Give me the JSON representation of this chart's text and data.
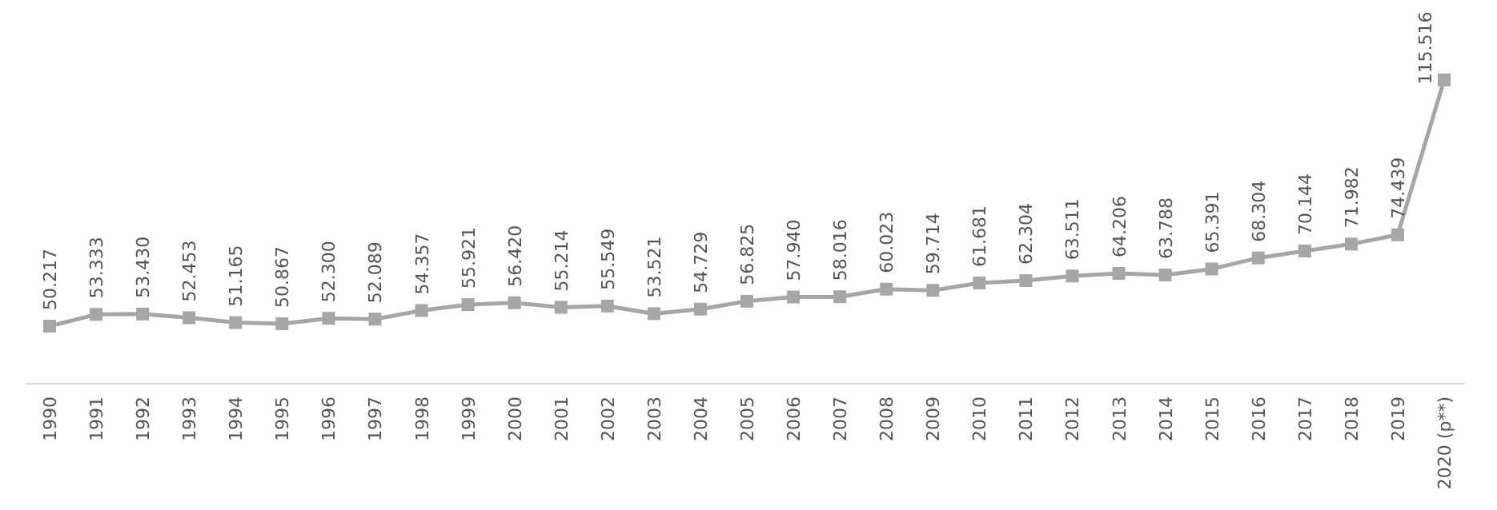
{
  "chart_data": {
    "type": "line",
    "categories": [
      "1990",
      "1991",
      "1992",
      "1993",
      "1994",
      "1995",
      "1996",
      "1997",
      "1998",
      "1999",
      "2000",
      "2001",
      "2002",
      "2003",
      "2004",
      "2005",
      "2006",
      "2007",
      "2008",
      "2009",
      "2010",
      "2011",
      "2012",
      "2013",
      "2014",
      "2015",
      "2016",
      "2017",
      "2018",
      "2019",
      "2020 (p**)"
    ],
    "series": [
      {
        "color": "#a6a6a6",
        "values": [
          50.217,
          53.333,
          53.43,
          52.453,
          51.165,
          50.867,
          52.3,
          52.089,
          54.357,
          55.921,
          56.42,
          55.214,
          55.549,
          53.521,
          54.729,
          56.825,
          57.94,
          58.016,
          60.023,
          59.714,
          61.681,
          62.304,
          63.511,
          64.206,
          63.788,
          65.391,
          68.304,
          70.144,
          71.982,
          74.439,
          115.516
        ],
        "value_labels": [
          "50.217",
          "53.333",
          "53.430",
          "52.453",
          "51.165",
          "50.867",
          "52.300",
          "52.089",
          "54.357",
          "55.921",
          "56.420",
          "55.214",
          "55.549",
          "53.521",
          "54.729",
          "56.825",
          "57.940",
          "58.016",
          "60.023",
          "59.714",
          "61.681",
          "62.304",
          "63.511",
          "64.206",
          "63.788",
          "65.391",
          "68.304",
          "70.144",
          "71.982",
          "74.439",
          "115.516"
        ]
      }
    ],
    "marker": "square",
    "line_style": "solid",
    "tick_labels": "x"
  }
}
